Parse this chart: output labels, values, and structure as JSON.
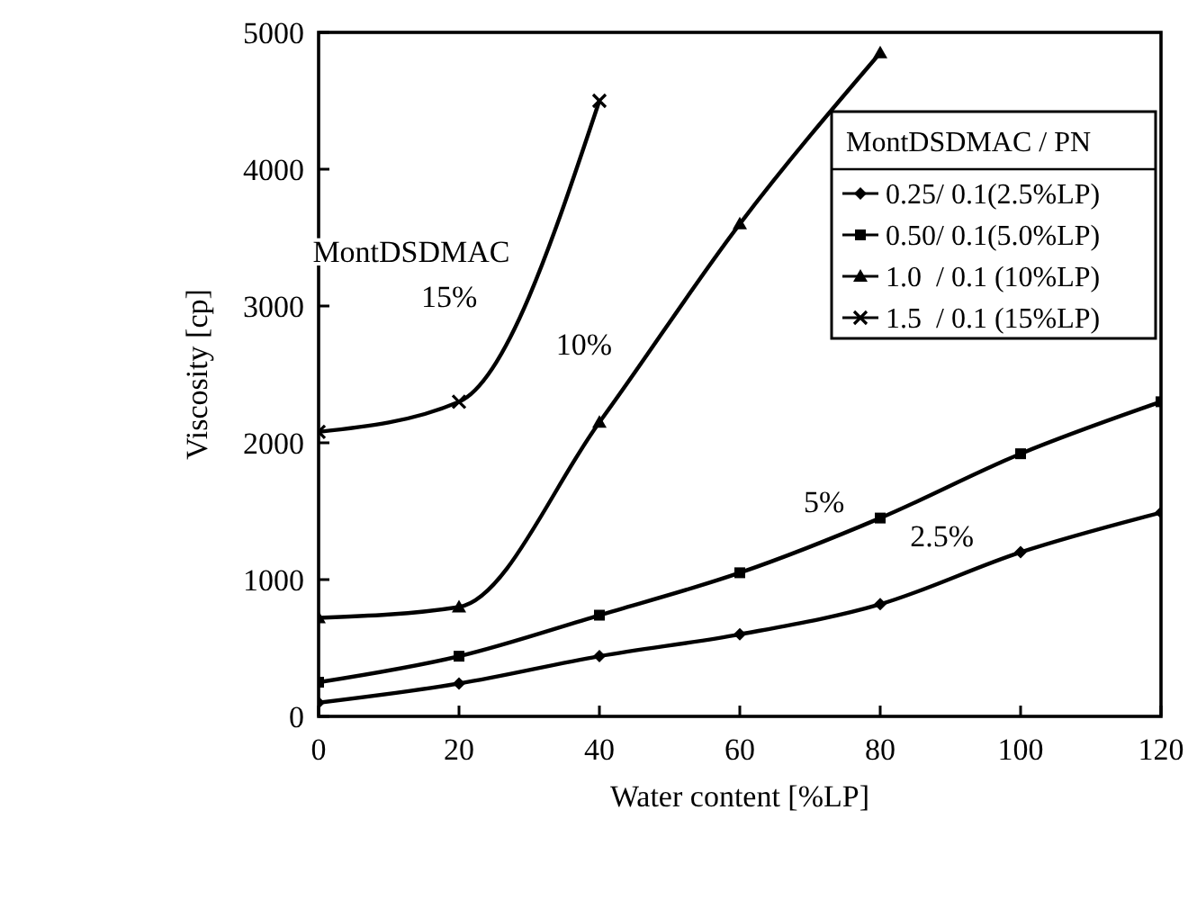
{
  "chart_data": {
    "type": "line",
    "xlabel": "Water content  [%LP]",
    "ylabel": "Viscosity [cp]",
    "legend_title": "MontDSDMAC / PN",
    "legend": "top right",
    "grid": false,
    "x": [
      0,
      20,
      40,
      60,
      80,
      100,
      120
    ],
    "xlim": [
      0,
      120
    ],
    "xticks": [
      0,
      20,
      40,
      60,
      80,
      100,
      120
    ],
    "ylim": [
      0,
      5000
    ],
    "yticks": [
      0,
      1000,
      2000,
      3000,
      4000,
      5000
    ],
    "series": [
      {
        "name": "0.25/ 0.1(2.5%LP)",
        "color": "#000000",
        "marker": "diamond",
        "values": [
          100,
          240,
          440,
          600,
          820,
          1200,
          1490
        ]
      },
      {
        "name": "0.50/ 0.1(5.0%LP)",
        "color": "#000000",
        "marker": "square",
        "values": [
          250,
          440,
          740,
          1050,
          1450,
          1920,
          2300
        ]
      },
      {
        "name": "1.0  / 0.1 (10%LP)",
        "color": "#000000",
        "marker": "triangle",
        "values": [
          720,
          800,
          2150,
          3600,
          4850,
          null,
          null
        ]
      },
      {
        "name": "1.5  / 0.1 (15%LP)",
        "color": "#000000",
        "marker": "cross",
        "values": [
          2080,
          2300,
          4500,
          null,
          null,
          null,
          null
        ]
      }
    ],
    "annotations": [
      "MontDSDMAC",
      "15%",
      "10%",
      "5%",
      "2.5%"
    ]
  }
}
